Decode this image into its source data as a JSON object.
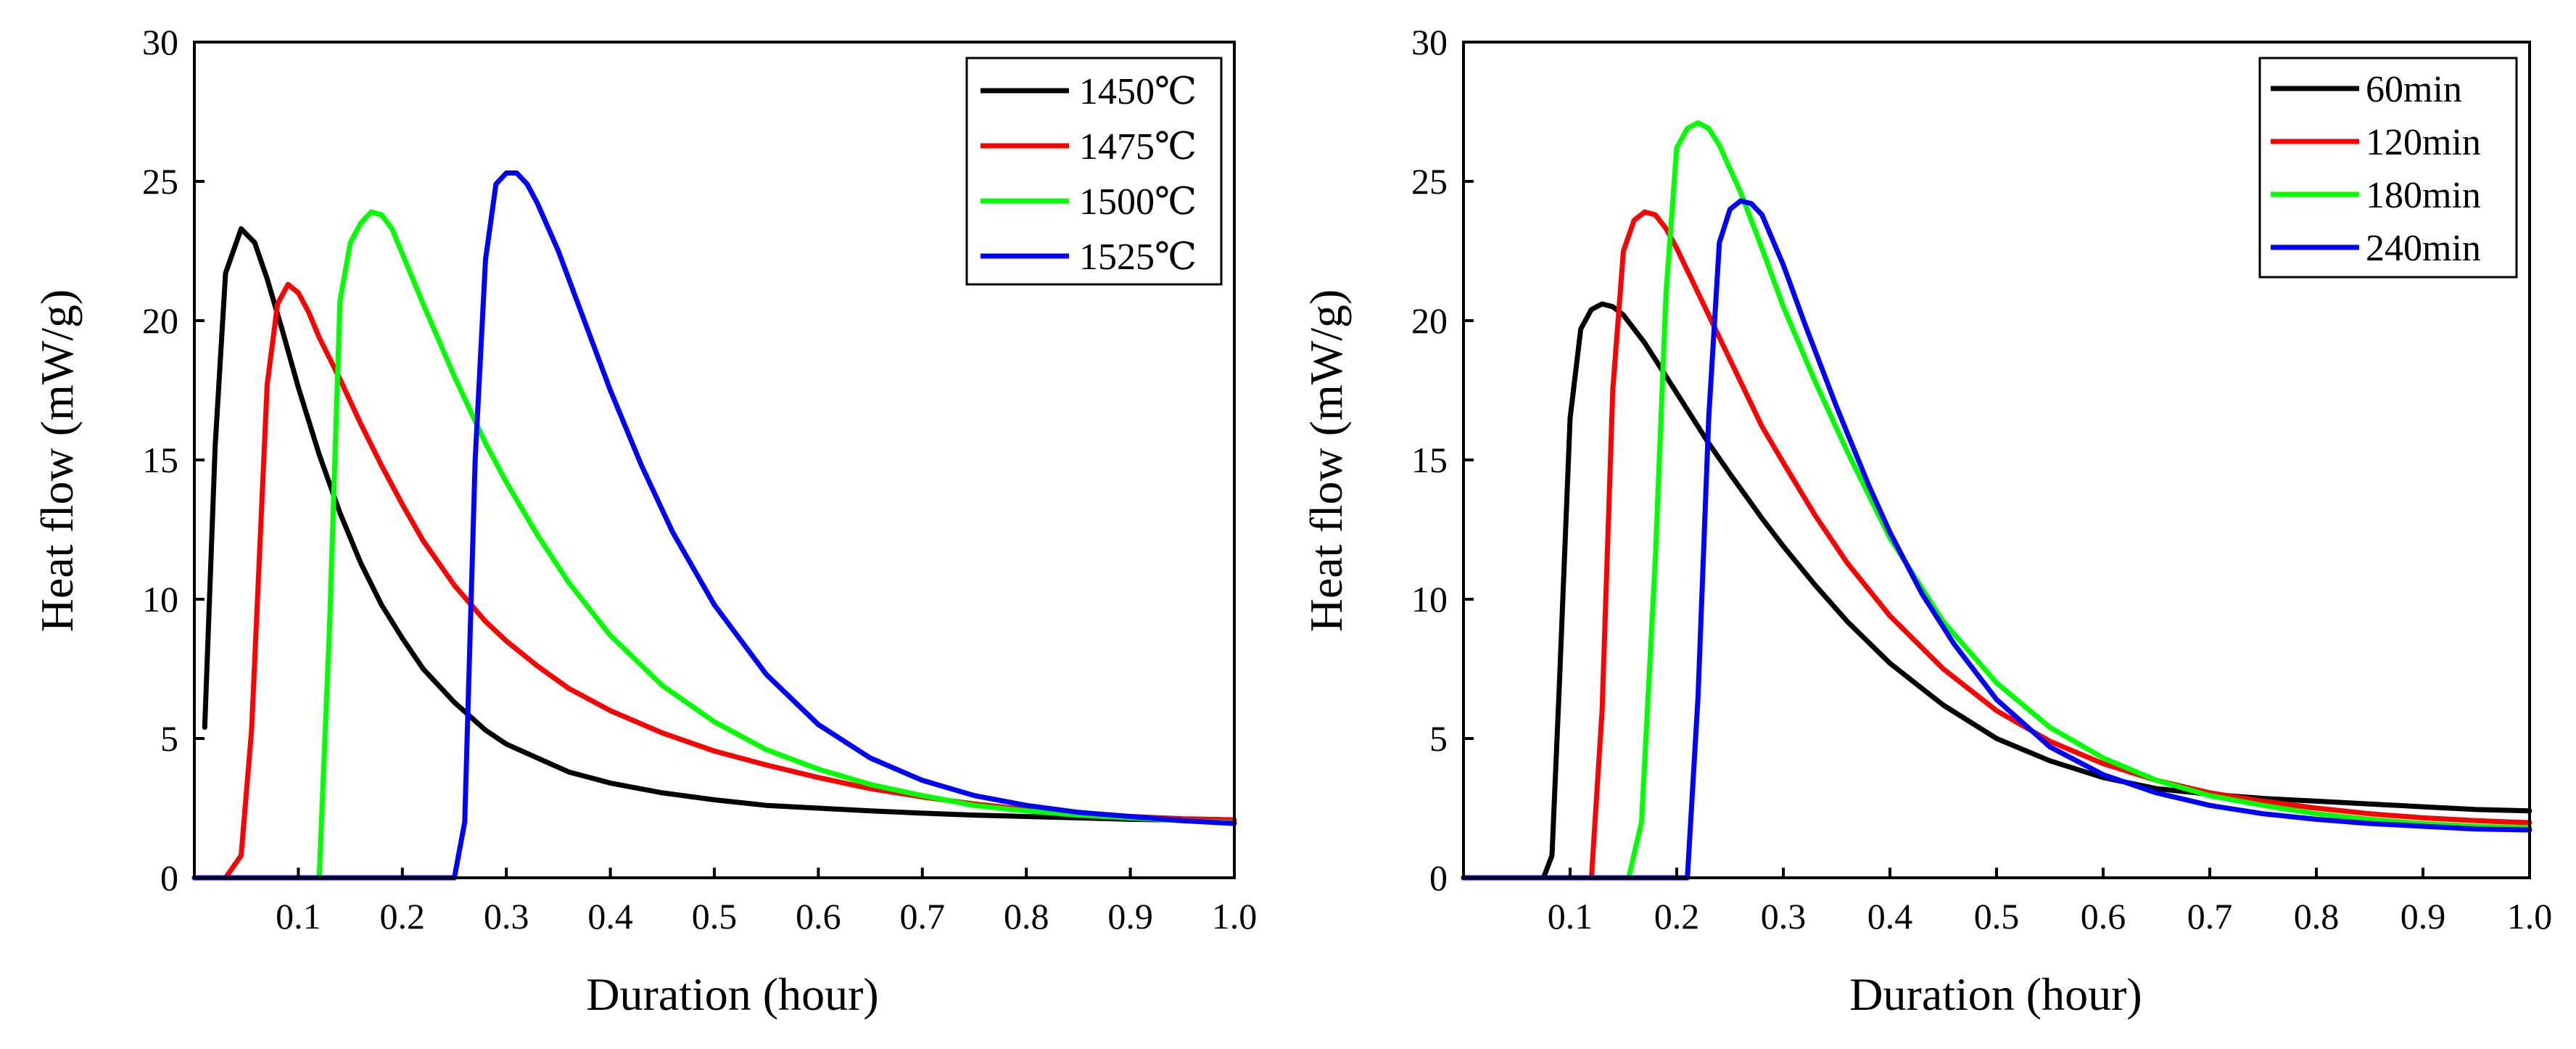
{
  "chart_data": [
    {
      "type": "line",
      "title": "",
      "xlabel": "Duration (hour)",
      "ylabel": "Heat flow (mW/g)",
      "xlim": [
        0.0,
        1.0
      ],
      "ylim": [
        0,
        30
      ],
      "xticks": [
        0.1,
        0.2,
        0.3,
        0.4,
        0.5,
        0.6,
        0.7,
        0.8,
        0.9
      ],
      "xtick_labels": [
        "0.1",
        "0.2",
        "0.3",
        "0.4",
        "0.5",
        "0.6",
        "0.7",
        "0.8",
        "0.9"
      ],
      "xtick_end_label": "1.0",
      "yticks": [
        0,
        5,
        10,
        15,
        20,
        25,
        30
      ],
      "ytick_labels": [
        "0",
        "5",
        "10",
        "15",
        "20",
        "25",
        "30"
      ],
      "grid": false,
      "legend_position": "top-right",
      "series": [
        {
          "name": "1450℃",
          "color": "#000000",
          "x": [
            0.01,
            0.02,
            0.03,
            0.045,
            0.058,
            0.07,
            0.085,
            0.1,
            0.12,
            0.14,
            0.16,
            0.18,
            0.2,
            0.22,
            0.25,
            0.28,
            0.3,
            0.33,
            0.36,
            0.4,
            0.45,
            0.5,
            0.55,
            0.6,
            0.65,
            0.7,
            0.75,
            0.8,
            0.85,
            0.9,
            0.95,
            1.0
          ],
          "y": [
            5.4,
            15.5,
            21.7,
            23.3,
            22.8,
            21.5,
            19.6,
            17.6,
            15.2,
            13.1,
            11.3,
            9.8,
            8.6,
            7.5,
            6.3,
            5.3,
            4.8,
            4.3,
            3.8,
            3.4,
            3.05,
            2.8,
            2.6,
            2.5,
            2.4,
            2.32,
            2.25,
            2.2,
            2.15,
            2.1,
            2.07,
            2.05
          ]
        },
        {
          "name": "1475℃",
          "color": "#ff0000",
          "x": [
            0.0,
            0.03,
            0.045,
            0.055,
            0.07,
            0.08,
            0.09,
            0.1,
            0.11,
            0.12,
            0.14,
            0.16,
            0.18,
            0.2,
            0.22,
            0.25,
            0.28,
            0.3,
            0.33,
            0.36,
            0.4,
            0.45,
            0.5,
            0.55,
            0.6,
            0.65,
            0.7,
            0.75,
            0.8,
            0.85,
            0.9,
            0.95,
            1.0
          ],
          "y": [
            0.0,
            0.0,
            0.8,
            5.3,
            17.7,
            20.6,
            21.3,
            21.0,
            20.3,
            19.4,
            17.9,
            16.3,
            14.8,
            13.4,
            12.1,
            10.5,
            9.2,
            8.5,
            7.6,
            6.8,
            6.0,
            5.2,
            4.55,
            4.05,
            3.6,
            3.2,
            2.9,
            2.65,
            2.45,
            2.3,
            2.2,
            2.12,
            2.08
          ]
        },
        {
          "name": "1500℃",
          "color": "#00ff00",
          "x": [
            0.0,
            0.12,
            0.13,
            0.14,
            0.15,
            0.16,
            0.17,
            0.18,
            0.19,
            0.2,
            0.22,
            0.25,
            0.28,
            0.3,
            0.33,
            0.36,
            0.4,
            0.45,
            0.5,
            0.55,
            0.6,
            0.65,
            0.7,
            0.75,
            0.8,
            0.85,
            0.9,
            0.95,
            1.0
          ],
          "y": [
            0.0,
            0.0,
            9.0,
            20.7,
            22.8,
            23.5,
            23.9,
            23.8,
            23.3,
            22.4,
            20.6,
            18.0,
            15.6,
            14.2,
            12.3,
            10.6,
            8.7,
            6.9,
            5.6,
            4.6,
            3.9,
            3.35,
            2.95,
            2.6,
            2.4,
            2.25,
            2.15,
            2.05,
            1.98
          ]
        },
        {
          "name": "1525℃",
          "color": "#0000ff",
          "x": [
            0.0,
            0.25,
            0.26,
            0.27,
            0.28,
            0.29,
            0.3,
            0.31,
            0.32,
            0.33,
            0.35,
            0.38,
            0.4,
            0.43,
            0.46,
            0.5,
            0.55,
            0.6,
            0.65,
            0.7,
            0.75,
            0.8,
            0.85,
            0.9,
            0.95,
            1.0
          ],
          "y": [
            0.0,
            0.0,
            2.0,
            15.0,
            22.2,
            24.9,
            25.3,
            25.3,
            24.9,
            24.2,
            22.5,
            19.5,
            17.5,
            14.8,
            12.4,
            9.8,
            7.3,
            5.5,
            4.3,
            3.5,
            2.95,
            2.6,
            2.35,
            2.2,
            2.05,
            1.95
          ]
        }
      ]
    },
    {
      "type": "line",
      "title": "",
      "xlabel": "Duration (hour)",
      "ylabel": "Heat flow (mW/g)",
      "xlim": [
        0.0,
        1.0
      ],
      "ylim": [
        0,
        30
      ],
      "xticks": [
        0.1,
        0.2,
        0.3,
        0.4,
        0.5,
        0.6,
        0.7,
        0.8,
        0.9
      ],
      "xtick_labels": [
        "0.1",
        "0.2",
        "0.3",
        "0.4",
        "0.5",
        "0.6",
        "0.7",
        "0.8",
        "0.9"
      ],
      "xtick_end_label": "1.0",
      "yticks": [
        0,
        5,
        10,
        15,
        20,
        25,
        30
      ],
      "ytick_labels": [
        "0",
        "5",
        "10",
        "15",
        "20",
        "25",
        "30"
      ],
      "grid": false,
      "legend_position": "top-right",
      "series": [
        {
          "name": "60min",
          "color": "#000000",
          "x": [
            0.0,
            0.075,
            0.083,
            0.09,
            0.1,
            0.11,
            0.12,
            0.13,
            0.14,
            0.15,
            0.17,
            0.2,
            0.23,
            0.25,
            0.28,
            0.3,
            0.33,
            0.36,
            0.4,
            0.45,
            0.5,
            0.55,
            0.6,
            0.65,
            0.7,
            0.75,
            0.8,
            0.85,
            0.9,
            0.95,
            1.0
          ],
          "y": [
            0.0,
            0.0,
            0.8,
            7.0,
            16.5,
            19.7,
            20.4,
            20.6,
            20.5,
            20.2,
            19.2,
            17.4,
            15.6,
            14.5,
            12.9,
            11.9,
            10.5,
            9.2,
            7.7,
            6.2,
            5.0,
            4.2,
            3.6,
            3.2,
            3.0,
            2.85,
            2.75,
            2.65,
            2.55,
            2.45,
            2.4
          ]
        },
        {
          "name": "120min",
          "color": "#ff0000",
          "x": [
            0.0,
            0.12,
            0.13,
            0.14,
            0.15,
            0.16,
            0.17,
            0.18,
            0.19,
            0.2,
            0.22,
            0.25,
            0.28,
            0.3,
            0.33,
            0.36,
            0.4,
            0.45,
            0.5,
            0.55,
            0.6,
            0.65,
            0.7,
            0.75,
            0.8,
            0.85,
            0.9,
            0.95,
            1.0
          ],
          "y": [
            0.0,
            0.0,
            6.0,
            17.5,
            22.5,
            23.6,
            23.9,
            23.8,
            23.3,
            22.6,
            21.0,
            18.6,
            16.2,
            14.9,
            13.0,
            11.3,
            9.4,
            7.5,
            6.0,
            4.9,
            4.1,
            3.5,
            3.05,
            2.75,
            2.5,
            2.3,
            2.15,
            2.05,
            1.98
          ]
        },
        {
          "name": "180min",
          "color": "#00ff00",
          "x": [
            0.0,
            0.155,
            0.167,
            0.18,
            0.19,
            0.2,
            0.21,
            0.22,
            0.23,
            0.24,
            0.26,
            0.28,
            0.3,
            0.33,
            0.36,
            0.4,
            0.45,
            0.5,
            0.55,
            0.6,
            0.65,
            0.7,
            0.75,
            0.8,
            0.85,
            0.9,
            0.95,
            1.0
          ],
          "y": [
            0.0,
            0.0,
            2.0,
            11.5,
            21.0,
            26.2,
            26.9,
            27.1,
            26.9,
            26.3,
            24.6,
            22.6,
            20.5,
            17.8,
            15.3,
            12.2,
            9.2,
            7.0,
            5.4,
            4.3,
            3.5,
            2.95,
            2.6,
            2.3,
            2.1,
            1.95,
            1.85,
            1.8
          ]
        },
        {
          "name": "240min",
          "color": "#0000ff",
          "x": [
            0.0,
            0.21,
            0.22,
            0.23,
            0.24,
            0.25,
            0.26,
            0.27,
            0.28,
            0.3,
            0.32,
            0.35,
            0.38,
            0.4,
            0.43,
            0.46,
            0.5,
            0.55,
            0.6,
            0.65,
            0.7,
            0.75,
            0.8,
            0.85,
            0.9,
            0.95,
            1.0
          ],
          "y": [
            0.0,
            0.0,
            6.5,
            16.5,
            22.8,
            24.0,
            24.3,
            24.2,
            23.8,
            22.0,
            19.9,
            16.9,
            14.1,
            12.4,
            10.2,
            8.4,
            6.4,
            4.7,
            3.7,
            3.05,
            2.6,
            2.3,
            2.1,
            1.95,
            1.85,
            1.75,
            1.72
          ]
        }
      ]
    }
  ]
}
